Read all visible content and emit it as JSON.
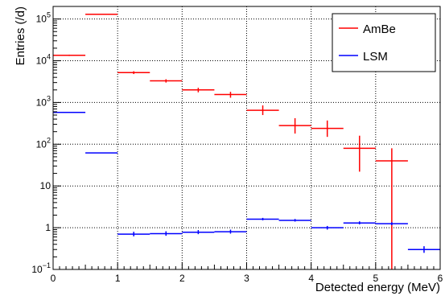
{
  "chart_data": {
    "type": "scatter",
    "title": "",
    "xlabel": "Detected energy (MeV)",
    "ylabel": "Entries (/d)",
    "xlim": [
      0,
      6
    ],
    "ylim": [
      0.1,
      200000
    ],
    "yscale": "log",
    "grid": true,
    "legend_position": "top-right",
    "x_ticks": [
      0,
      1,
      2,
      3,
      4,
      5,
      6
    ],
    "x_tick_labels": [
      "0",
      "1",
      "2",
      "3",
      "4",
      "5",
      "6"
    ],
    "y_ticks": [
      0.1,
      1,
      10,
      100,
      1000,
      10000,
      100000
    ],
    "y_tick_labels": [
      {
        "base": "10",
        "exp": "−1"
      },
      {
        "base": "1",
        "exp": ""
      },
      {
        "base": "10",
        "exp": ""
      },
      {
        "base": "10",
        "exp": "2"
      },
      {
        "base": "10",
        "exp": "3"
      },
      {
        "base": "10",
        "exp": "4"
      },
      {
        "base": "10",
        "exp": "5"
      }
    ],
    "series": [
      {
        "name": "AmBe",
        "color": "#ff0000",
        "points": [
          {
            "x": 0.25,
            "xerr": 0.25,
            "y": 13500,
            "ylo": 13000,
            "yhi": 14000
          },
          {
            "x": 0.75,
            "xerr": 0.25,
            "y": 130000,
            "ylo": 128000,
            "yhi": 132000
          },
          {
            "x": 1.25,
            "xerr": 0.25,
            "y": 5200,
            "ylo": 4800,
            "yhi": 5600
          },
          {
            "x": 1.75,
            "xerr": 0.25,
            "y": 3300,
            "ylo": 3000,
            "yhi": 3600
          },
          {
            "x": 2.25,
            "xerr": 0.25,
            "y": 2000,
            "ylo": 1750,
            "yhi": 2250
          },
          {
            "x": 2.75,
            "xerr": 0.25,
            "y": 1550,
            "ylo": 1300,
            "yhi": 1800
          },
          {
            "x": 3.25,
            "xerr": 0.25,
            "y": 650,
            "ylo": 500,
            "yhi": 850
          },
          {
            "x": 3.75,
            "xerr": 0.25,
            "y": 280,
            "ylo": 180,
            "yhi": 420
          },
          {
            "x": 4.25,
            "xerr": 0.25,
            "y": 240,
            "ylo": 150,
            "yhi": 370
          },
          {
            "x": 4.75,
            "xerr": 0.25,
            "y": 80,
            "ylo": 22,
            "yhi": 160
          },
          {
            "x": 5.25,
            "xerr": 0.25,
            "y": 40,
            "ylo": 0.1,
            "yhi": 80
          }
        ]
      },
      {
        "name": "LSM",
        "color": "#0000ff",
        "points": [
          {
            "x": 0.25,
            "xerr": 0.25,
            "y": 580,
            "ylo": 575,
            "yhi": 585
          },
          {
            "x": 0.75,
            "xerr": 0.25,
            "y": 62,
            "ylo": 61,
            "yhi": 63
          },
          {
            "x": 1.25,
            "xerr": 0.25,
            "y": 0.7,
            "ylo": 0.62,
            "yhi": 0.8
          },
          {
            "x": 1.75,
            "xerr": 0.25,
            "y": 0.72,
            "ylo": 0.64,
            "yhi": 0.82
          },
          {
            "x": 2.25,
            "xerr": 0.25,
            "y": 0.78,
            "ylo": 0.7,
            "yhi": 0.88
          },
          {
            "x": 2.75,
            "xerr": 0.25,
            "y": 0.8,
            "ylo": 0.72,
            "yhi": 0.9
          },
          {
            "x": 3.25,
            "xerr": 0.25,
            "y": 1.6,
            "ylo": 1.5,
            "yhi": 1.72
          },
          {
            "x": 3.75,
            "xerr": 0.25,
            "y": 1.5,
            "ylo": 1.4,
            "yhi": 1.62
          },
          {
            "x": 4.25,
            "xerr": 0.25,
            "y": 1.0,
            "ylo": 0.9,
            "yhi": 1.1
          },
          {
            "x": 4.75,
            "xerr": 0.25,
            "y": 1.3,
            "ylo": 1.2,
            "yhi": 1.42
          },
          {
            "x": 5.25,
            "xerr": 0.25,
            "y": 1.25,
            "ylo": 1.15,
            "yhi": 1.35
          },
          {
            "x": 5.75,
            "xerr": 0.25,
            "y": 0.3,
            "ylo": 0.25,
            "yhi": 0.36
          }
        ]
      }
    ]
  }
}
